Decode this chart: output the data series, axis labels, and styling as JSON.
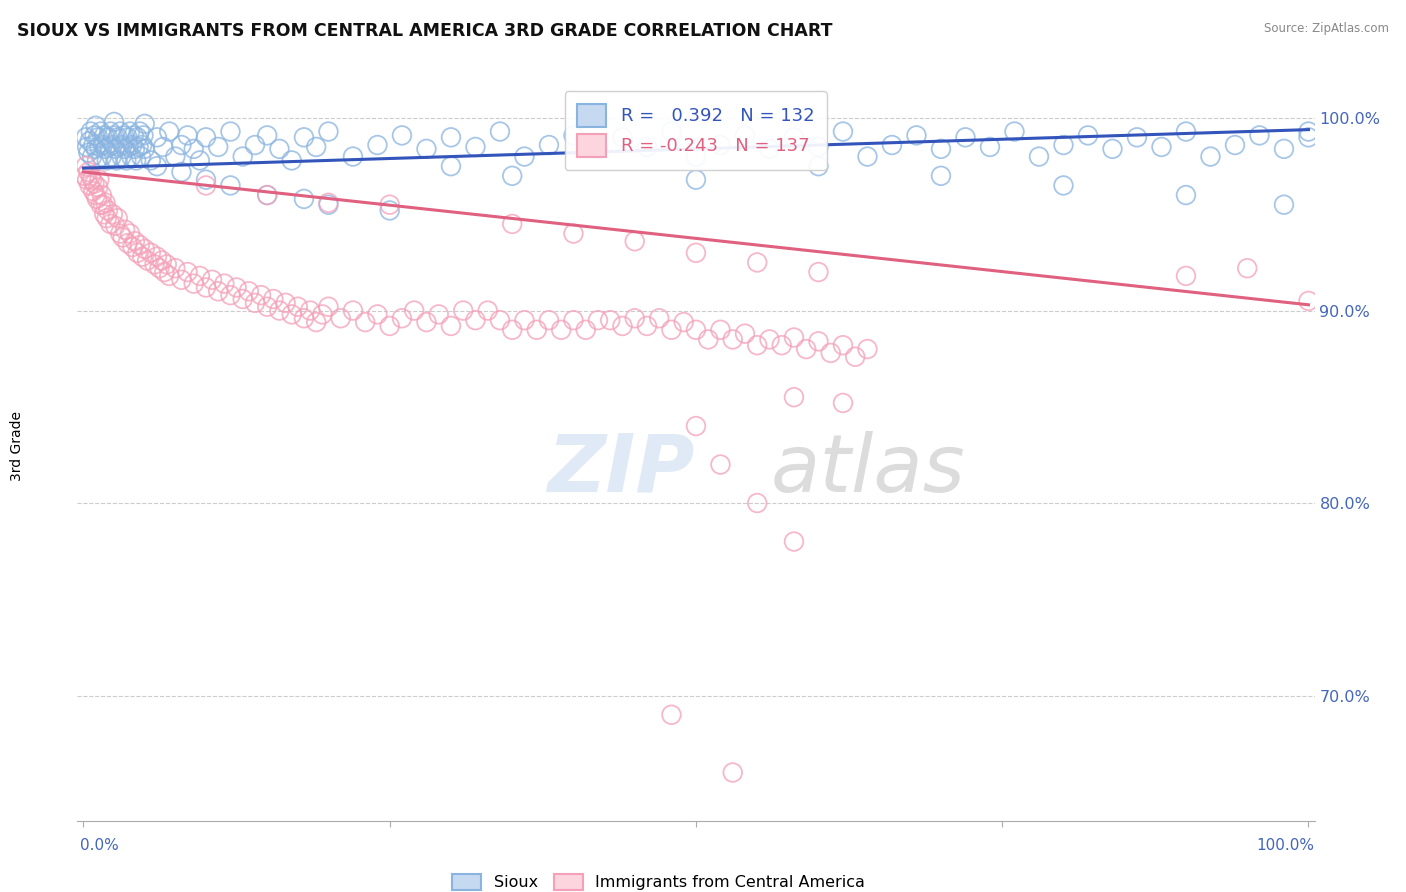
{
  "title": "SIOUX VS IMMIGRANTS FROM CENTRAL AMERICA 3RD GRADE CORRELATION CHART",
  "source": "Source: ZipAtlas.com",
  "ylabel": "3rd Grade",
  "blue_R": 0.392,
  "blue_N": 132,
  "pink_R": -0.243,
  "pink_N": 137,
  "blue_color": "#8ab4e0",
  "pink_color": "#f4a0b8",
  "blue_line_color": "#3355bb",
  "pink_line_color": "#e06080",
  "blue_trend_start": 0.974,
  "blue_trend_end": 0.994,
  "pink_trend_start": 0.972,
  "pink_trend_end": 0.903,
  "ymin": 0.635,
  "ymax": 1.015,
  "xmin": -0.005,
  "xmax": 1.005,
  "ytick_vals": [
    0.7,
    0.8,
    0.9,
    1.0
  ],
  "ytick_labels": [
    "70.0%",
    "80.0%",
    "90.0%",
    "100.0%"
  ],
  "grid_color": "#cccccc",
  "tick_color": "#4466bb",
  "background_color": "#ffffff",
  "blue_scatter": [
    [
      0.002,
      0.99
    ],
    [
      0.003,
      0.985
    ],
    [
      0.004,
      0.982
    ],
    [
      0.005,
      0.988
    ],
    [
      0.006,
      0.993
    ],
    [
      0.007,
      0.98
    ],
    [
      0.008,
      0.986
    ],
    [
      0.009,
      0.991
    ],
    [
      0.01,
      0.984
    ],
    [
      0.011,
      0.978
    ],
    [
      0.012,
      0.99
    ],
    [
      0.013,
      0.985
    ],
    [
      0.014,
      0.993
    ],
    [
      0.015,
      0.98
    ],
    [
      0.016,
      0.986
    ],
    [
      0.017,
      0.991
    ],
    [
      0.018,
      0.984
    ],
    [
      0.019,
      0.978
    ],
    [
      0.02,
      0.99
    ],
    [
      0.021,
      0.985
    ],
    [
      0.022,
      0.993
    ],
    [
      0.023,
      0.98
    ],
    [
      0.024,
      0.986
    ],
    [
      0.025,
      0.991
    ],
    [
      0.026,
      0.984
    ],
    [
      0.027,
      0.978
    ],
    [
      0.028,
      0.99
    ],
    [
      0.029,
      0.985
    ],
    [
      0.03,
      0.993
    ],
    [
      0.031,
      0.98
    ],
    [
      0.032,
      0.986
    ],
    [
      0.033,
      0.991
    ],
    [
      0.034,
      0.984
    ],
    [
      0.035,
      0.978
    ],
    [
      0.036,
      0.99
    ],
    [
      0.037,
      0.985
    ],
    [
      0.038,
      0.993
    ],
    [
      0.039,
      0.98
    ],
    [
      0.04,
      0.986
    ],
    [
      0.041,
      0.991
    ],
    [
      0.042,
      0.984
    ],
    [
      0.043,
      0.978
    ],
    [
      0.044,
      0.99
    ],
    [
      0.045,
      0.985
    ],
    [
      0.046,
      0.993
    ],
    [
      0.047,
      0.98
    ],
    [
      0.048,
      0.986
    ],
    [
      0.049,
      0.991
    ],
    [
      0.05,
      0.984
    ],
    [
      0.055,
      0.978
    ],
    [
      0.06,
      0.99
    ],
    [
      0.065,
      0.985
    ],
    [
      0.07,
      0.993
    ],
    [
      0.075,
      0.98
    ],
    [
      0.08,
      0.986
    ],
    [
      0.085,
      0.991
    ],
    [
      0.09,
      0.984
    ],
    [
      0.095,
      0.978
    ],
    [
      0.1,
      0.99
    ],
    [
      0.11,
      0.985
    ],
    [
      0.12,
      0.993
    ],
    [
      0.13,
      0.98
    ],
    [
      0.14,
      0.986
    ],
    [
      0.15,
      0.991
    ],
    [
      0.16,
      0.984
    ],
    [
      0.17,
      0.978
    ],
    [
      0.18,
      0.99
    ],
    [
      0.19,
      0.985
    ],
    [
      0.2,
      0.993
    ],
    [
      0.22,
      0.98
    ],
    [
      0.24,
      0.986
    ],
    [
      0.26,
      0.991
    ],
    [
      0.28,
      0.984
    ],
    [
      0.3,
      0.99
    ],
    [
      0.32,
      0.985
    ],
    [
      0.34,
      0.993
    ],
    [
      0.36,
      0.98
    ],
    [
      0.38,
      0.986
    ],
    [
      0.4,
      0.991
    ],
    [
      0.42,
      0.984
    ],
    [
      0.44,
      0.99
    ],
    [
      0.46,
      0.985
    ],
    [
      0.48,
      0.993
    ],
    [
      0.5,
      0.98
    ],
    [
      0.52,
      0.986
    ],
    [
      0.54,
      0.991
    ],
    [
      0.56,
      0.984
    ],
    [
      0.58,
      0.99
    ],
    [
      0.6,
      0.985
    ],
    [
      0.62,
      0.993
    ],
    [
      0.64,
      0.98
    ],
    [
      0.66,
      0.986
    ],
    [
      0.68,
      0.991
    ],
    [
      0.7,
      0.984
    ],
    [
      0.72,
      0.99
    ],
    [
      0.74,
      0.985
    ],
    [
      0.76,
      0.993
    ],
    [
      0.78,
      0.98
    ],
    [
      0.8,
      0.986
    ],
    [
      0.82,
      0.991
    ],
    [
      0.84,
      0.984
    ],
    [
      0.86,
      0.99
    ],
    [
      0.88,
      0.985
    ],
    [
      0.9,
      0.993
    ],
    [
      0.92,
      0.98
    ],
    [
      0.94,
      0.986
    ],
    [
      0.96,
      0.991
    ],
    [
      0.98,
      0.984
    ],
    [
      1.0,
      0.99
    ],
    [
      0.06,
      0.975
    ],
    [
      0.08,
      0.972
    ],
    [
      0.1,
      0.968
    ],
    [
      0.12,
      0.965
    ],
    [
      0.15,
      0.96
    ],
    [
      0.18,
      0.958
    ],
    [
      0.2,
      0.955
    ],
    [
      0.25,
      0.952
    ],
    [
      0.3,
      0.975
    ],
    [
      0.35,
      0.97
    ],
    [
      0.5,
      0.968
    ],
    [
      0.6,
      0.975
    ],
    [
      0.7,
      0.97
    ],
    [
      0.8,
      0.965
    ],
    [
      0.9,
      0.96
    ],
    [
      0.98,
      0.955
    ],
    [
      1.0,
      0.993
    ],
    [
      0.05,
      0.997
    ],
    [
      0.01,
      0.996
    ],
    [
      0.025,
      0.998
    ]
  ],
  "pink_scatter": [
    [
      0.001,
      0.97
    ],
    [
      0.002,
      0.975
    ],
    [
      0.003,
      0.968
    ],
    [
      0.004,
      0.972
    ],
    [
      0.005,
      0.965
    ],
    [
      0.006,
      0.97
    ],
    [
      0.007,
      0.968
    ],
    [
      0.008,
      0.962
    ],
    [
      0.009,
      0.966
    ],
    [
      0.01,
      0.96
    ],
    [
      0.011,
      0.958
    ],
    [
      0.012,
      0.964
    ],
    [
      0.013,
      0.968
    ],
    [
      0.014,
      0.955
    ],
    [
      0.015,
      0.96
    ],
    [
      0.016,
      0.955
    ],
    [
      0.017,
      0.95
    ],
    [
      0.018,
      0.956
    ],
    [
      0.019,
      0.948
    ],
    [
      0.02,
      0.952
    ],
    [
      0.022,
      0.945
    ],
    [
      0.024,
      0.95
    ],
    [
      0.026,
      0.944
    ],
    [
      0.028,
      0.948
    ],
    [
      0.03,
      0.94
    ],
    [
      0.032,
      0.938
    ],
    [
      0.034,
      0.942
    ],
    [
      0.036,
      0.935
    ],
    [
      0.038,
      0.94
    ],
    [
      0.04,
      0.933
    ],
    [
      0.042,
      0.936
    ],
    [
      0.044,
      0.93
    ],
    [
      0.046,
      0.934
    ],
    [
      0.048,
      0.928
    ],
    [
      0.05,
      0.932
    ],
    [
      0.052,
      0.926
    ],
    [
      0.055,
      0.93
    ],
    [
      0.058,
      0.924
    ],
    [
      0.06,
      0.928
    ],
    [
      0.062,
      0.922
    ],
    [
      0.064,
      0.926
    ],
    [
      0.066,
      0.92
    ],
    [
      0.068,
      0.924
    ],
    [
      0.07,
      0.918
    ],
    [
      0.075,
      0.922
    ],
    [
      0.08,
      0.916
    ],
    [
      0.085,
      0.92
    ],
    [
      0.09,
      0.914
    ],
    [
      0.095,
      0.918
    ],
    [
      0.1,
      0.912
    ],
    [
      0.105,
      0.916
    ],
    [
      0.11,
      0.91
    ],
    [
      0.115,
      0.914
    ],
    [
      0.12,
      0.908
    ],
    [
      0.125,
      0.912
    ],
    [
      0.13,
      0.906
    ],
    [
      0.135,
      0.91
    ],
    [
      0.14,
      0.904
    ],
    [
      0.145,
      0.908
    ],
    [
      0.15,
      0.902
    ],
    [
      0.155,
      0.906
    ],
    [
      0.16,
      0.9
    ],
    [
      0.165,
      0.904
    ],
    [
      0.17,
      0.898
    ],
    [
      0.175,
      0.902
    ],
    [
      0.18,
      0.896
    ],
    [
      0.185,
      0.9
    ],
    [
      0.19,
      0.894
    ],
    [
      0.195,
      0.898
    ],
    [
      0.2,
      0.902
    ],
    [
      0.21,
      0.896
    ],
    [
      0.22,
      0.9
    ],
    [
      0.23,
      0.894
    ],
    [
      0.24,
      0.898
    ],
    [
      0.25,
      0.892
    ],
    [
      0.26,
      0.896
    ],
    [
      0.27,
      0.9
    ],
    [
      0.28,
      0.894
    ],
    [
      0.29,
      0.898
    ],
    [
      0.3,
      0.892
    ],
    [
      0.31,
      0.9
    ],
    [
      0.32,
      0.895
    ],
    [
      0.33,
      0.9
    ],
    [
      0.34,
      0.895
    ],
    [
      0.35,
      0.89
    ],
    [
      0.36,
      0.895
    ],
    [
      0.37,
      0.89
    ],
    [
      0.38,
      0.895
    ],
    [
      0.39,
      0.89
    ],
    [
      0.4,
      0.895
    ],
    [
      0.41,
      0.89
    ],
    [
      0.42,
      0.895
    ],
    [
      0.43,
      0.895
    ],
    [
      0.44,
      0.892
    ],
    [
      0.45,
      0.896
    ],
    [
      0.46,
      0.892
    ],
    [
      0.47,
      0.896
    ],
    [
      0.48,
      0.89
    ],
    [
      0.49,
      0.894
    ],
    [
      0.5,
      0.89
    ],
    [
      0.51,
      0.885
    ],
    [
      0.52,
      0.89
    ],
    [
      0.53,
      0.885
    ],
    [
      0.54,
      0.888
    ],
    [
      0.55,
      0.882
    ],
    [
      0.56,
      0.885
    ],
    [
      0.57,
      0.882
    ],
    [
      0.58,
      0.886
    ],
    [
      0.59,
      0.88
    ],
    [
      0.6,
      0.884
    ],
    [
      0.61,
      0.878
    ],
    [
      0.62,
      0.882
    ],
    [
      0.63,
      0.876
    ],
    [
      0.64,
      0.88
    ],
    [
      0.9,
      0.918
    ],
    [
      0.95,
      0.922
    ],
    [
      1.0,
      0.905
    ],
    [
      0.35,
      0.945
    ],
    [
      0.4,
      0.94
    ],
    [
      0.45,
      0.936
    ],
    [
      0.5,
      0.93
    ],
    [
      0.55,
      0.925
    ],
    [
      0.6,
      0.92
    ],
    [
      0.55,
      0.8
    ],
    [
      0.58,
      0.78
    ],
    [
      0.5,
      0.84
    ],
    [
      0.52,
      0.82
    ],
    [
      0.48,
      0.69
    ],
    [
      0.53,
      0.66
    ],
    [
      0.58,
      0.855
    ],
    [
      0.62,
      0.852
    ],
    [
      0.15,
      0.96
    ],
    [
      0.1,
      0.965
    ],
    [
      0.2,
      0.956
    ],
    [
      0.25,
      0.955
    ]
  ]
}
